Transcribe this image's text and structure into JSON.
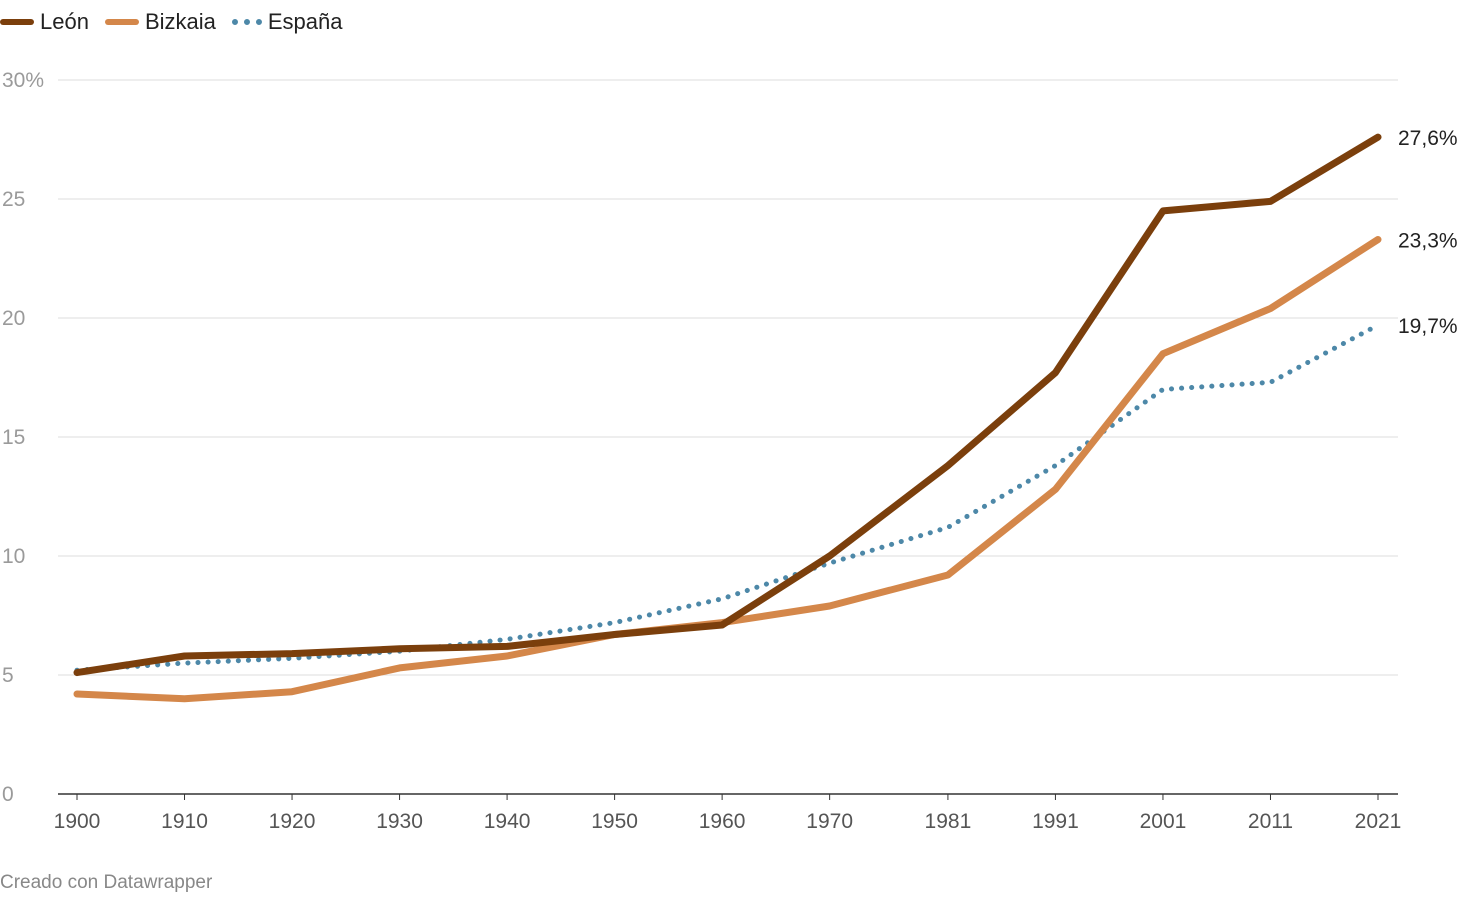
{
  "chart_data": {
    "type": "line",
    "title": "",
    "xlabel": "",
    "ylabel": "",
    "ylim": [
      0,
      30
    ],
    "y_ticks": [
      "0",
      "5",
      "10",
      "15",
      "20",
      "25",
      "30%"
    ],
    "y_tick_values": [
      0,
      5,
      10,
      15,
      20,
      25,
      30
    ],
    "grid": true,
    "legend_position": "top-left",
    "categories": [
      "1900",
      "1910",
      "1920",
      "1930",
      "1940",
      "1950",
      "1960",
      "1970",
      "1981",
      "1991",
      "2001",
      "2011",
      "2021"
    ],
    "x": [
      1900,
      1910,
      1920,
      1930,
      1940,
      1950,
      1960,
      1970,
      1981,
      1991,
      2001,
      2011,
      2021
    ],
    "series": [
      {
        "name": "León",
        "color": "#7b3f0c",
        "style": "solid",
        "values": [
          5.1,
          5.8,
          5.9,
          6.1,
          6.2,
          6.7,
          7.1,
          10.0,
          13.8,
          17.7,
          24.5,
          24.9,
          27.6
        ],
        "end_label": "27,6%"
      },
      {
        "name": "Bizkaia",
        "color": "#d4874a",
        "style": "solid",
        "values": [
          4.2,
          4.0,
          4.3,
          5.3,
          5.8,
          6.7,
          7.2,
          7.9,
          9.2,
          12.8,
          18.5,
          20.4,
          23.3
        ],
        "end_label": "23,3%"
      },
      {
        "name": "España",
        "color": "#4d88a8",
        "style": "dotted",
        "values": [
          5.2,
          5.5,
          5.7,
          6.0,
          6.5,
          7.2,
          8.2,
          9.7,
          11.2,
          13.8,
          17.0,
          17.3,
          19.7
        ],
        "end_label": "19,7%"
      }
    ]
  },
  "footer": {
    "credit": "Creado con Datawrapper"
  }
}
